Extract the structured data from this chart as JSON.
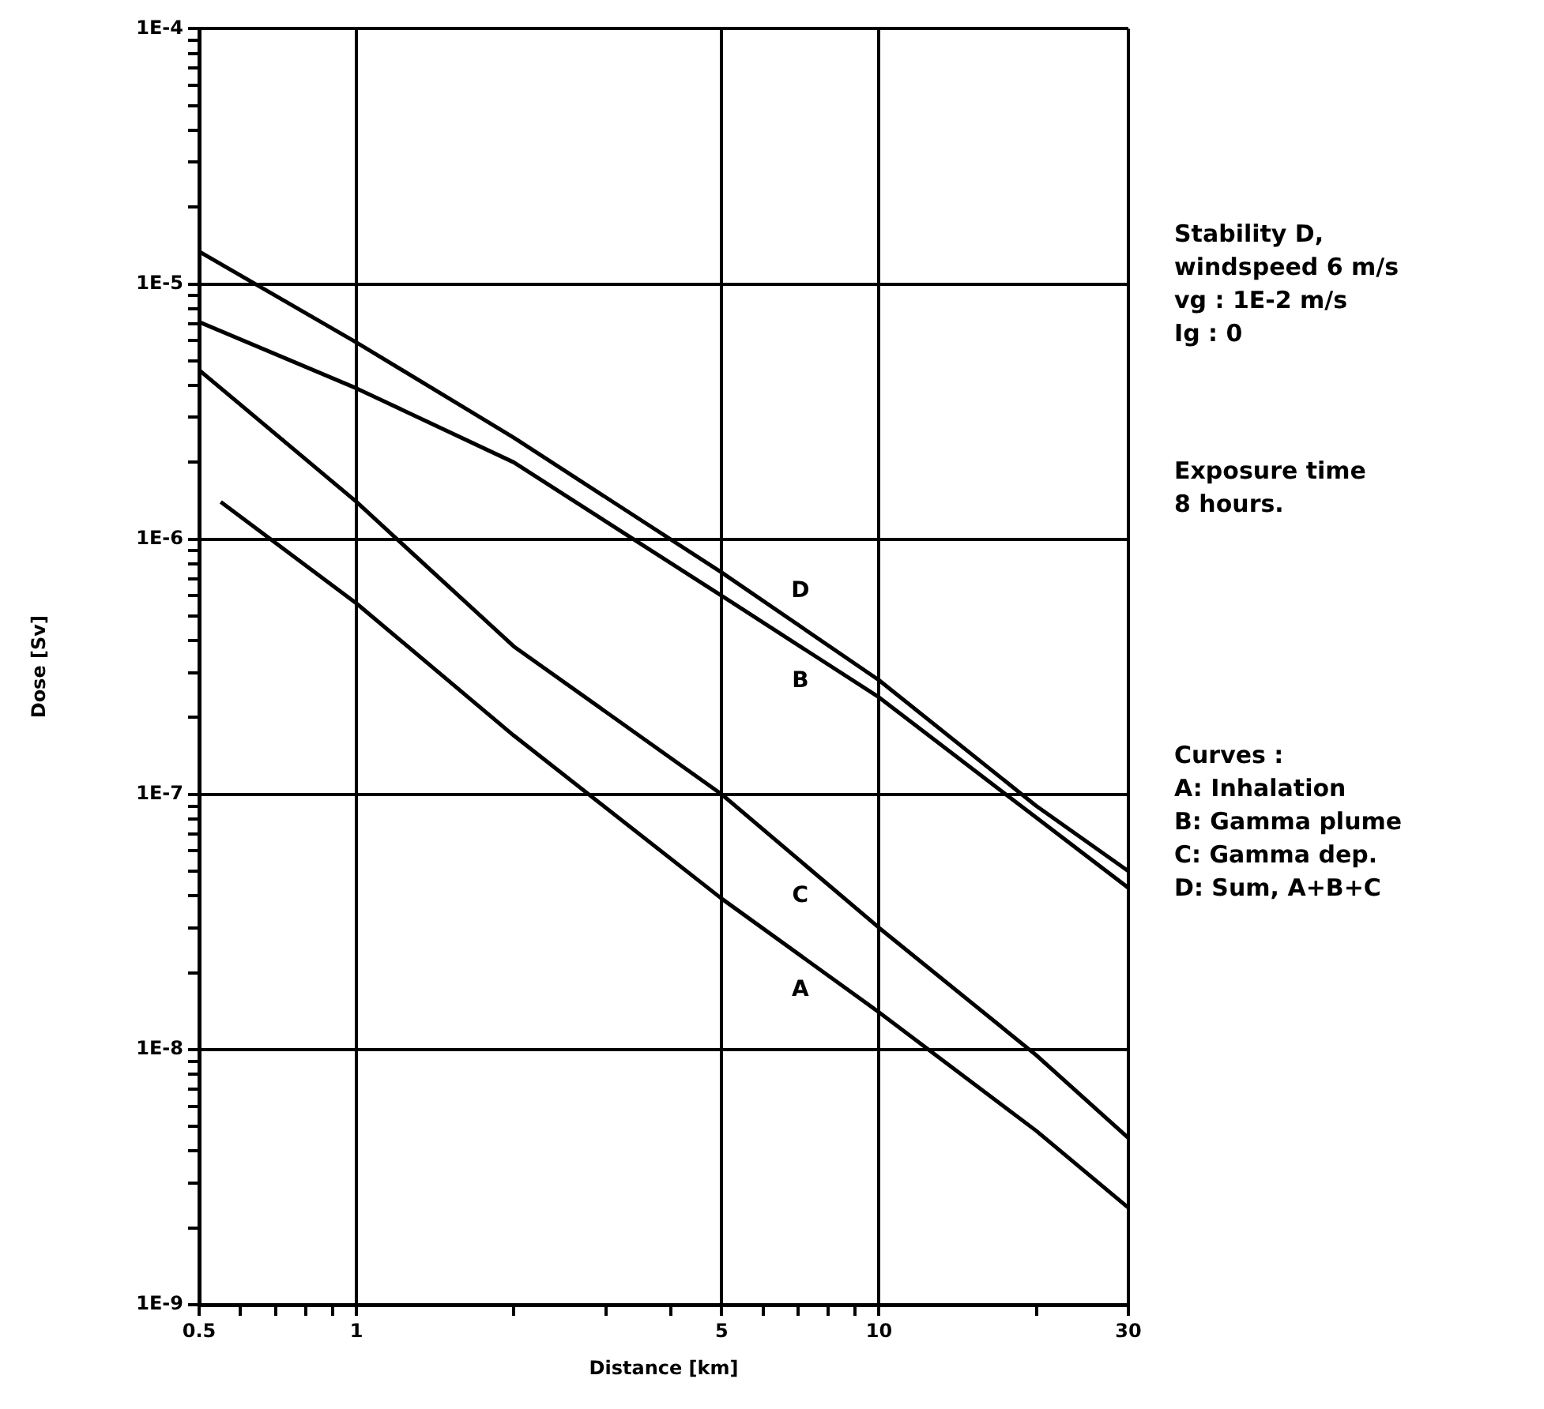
{
  "chart_data": {
    "type": "line",
    "xlabel": "Distance [km]",
    "ylabel": "Dose [Sv]",
    "log": "xy",
    "grid": true,
    "legend": false,
    "marker": "none",
    "line_style": "solid",
    "xlim": [
      0.5,
      30
    ],
    "xticks": [
      {
        "value": 0.5,
        "label": "0.5"
      },
      {
        "value": 0.6,
        "label": null
      },
      {
        "value": 0.7,
        "label": null
      },
      {
        "value": 0.8,
        "label": null
      },
      {
        "value": 0.9,
        "label": null
      },
      1,
      {
        "value": 2,
        "label": null
      },
      {
        "value": 3,
        "label": null
      },
      {
        "value": 4,
        "label": null
      },
      5,
      {
        "value": 6,
        "label": null
      },
      {
        "value": 7,
        "label": null
      },
      {
        "value": 8,
        "label": null
      },
      {
        "value": 9,
        "label": null
      },
      10,
      {
        "value": 20,
        "label": null
      },
      30
    ],
    "ylim": [
      1e-09,
      0.0001
    ],
    "yticks": [
      {
        "value": 1e-09,
        "label": "1E-9"
      },
      {
        "value": 2e-09,
        "label": null
      },
      {
        "value": 3e-09,
        "label": null
      },
      {
        "value": 4e-09,
        "label": null
      },
      {
        "value": 5e-09,
        "label": null
      },
      {
        "value": 6e-09,
        "label": null
      },
      {
        "value": 7e-09,
        "label": null
      },
      {
        "value": 8e-09,
        "label": null
      },
      {
        "value": 9e-09,
        "label": null
      },
      {
        "value": 1e-08,
        "label": "1E-8"
      },
      {
        "value": 2e-08,
        "label": null
      },
      {
        "value": 3e-08,
        "label": null
      },
      {
        "value": 4e-08,
        "label": null
      },
      {
        "value": 5e-08,
        "label": null
      },
      {
        "value": 6e-08,
        "label": null
      },
      {
        "value": 7e-08,
        "label": null
      },
      {
        "value": 8e-08,
        "label": null
      },
      {
        "value": 9e-08,
        "label": null
      },
      {
        "value": 1e-07,
        "label": "1E-7"
      },
      {
        "value": 2e-07,
        "label": null
      },
      {
        "value": 3e-07,
        "label": null
      },
      {
        "value": 4e-07,
        "label": null
      },
      {
        "value": 5e-07,
        "label": null
      },
      {
        "value": 6e-07,
        "label": null
      },
      {
        "value": 7e-07,
        "label": null
      },
      {
        "value": 8e-07,
        "label": null
      },
      {
        "value": 9e-07,
        "label": null
      },
      {
        "value": 1e-06,
        "label": "1E-6"
      },
      {
        "value": 2e-06,
        "label": null
      },
      {
        "value": 3e-06,
        "label": null
      },
      {
        "value": 4e-06,
        "label": null
      },
      {
        "value": 5e-06,
        "label": null
      },
      {
        "value": 6e-06,
        "label": null
      },
      {
        "value": 7e-06,
        "label": null
      },
      {
        "value": 8e-06,
        "label": null
      },
      {
        "value": 9e-06,
        "label": null
      },
      {
        "value": 1e-05,
        "label": "1E-5"
      },
      {
        "value": 2e-05,
        "label": null
      },
      {
        "value": 3e-05,
        "label": null
      },
      {
        "value": 4e-05,
        "label": null
      },
      {
        "value": 5e-05,
        "label": null
      },
      {
        "value": 6e-05,
        "label": null
      },
      {
        "value": 7e-05,
        "label": null
      },
      {
        "value": 8e-05,
        "label": null
      },
      {
        "value": 9e-05,
        "label": null
      },
      {
        "value": 0.0001,
        "label": "1E-4"
      }
    ],
    "series": [
      {
        "name": "A",
        "color": "#000000",
        "x": [
          0.55,
          1,
          2,
          5,
          10,
          20,
          30
        ],
        "values": [
          1.4e-06,
          5.6e-07,
          1.7e-07,
          3.9e-08,
          1.4e-08,
          4.8e-09,
          2.4e-09
        ]
      },
      {
        "name": "B",
        "color": "#000000",
        "x": [
          0.5,
          1,
          2,
          5,
          10,
          20,
          30
        ],
        "values": [
          7.1e-06,
          3.9e-06,
          2e-06,
          6e-07,
          2.4e-07,
          8.1e-08,
          4.3e-08
        ]
      },
      {
        "name": "C",
        "color": "#000000",
        "x": [
          0.5,
          1,
          2,
          5,
          10,
          20,
          30
        ],
        "values": [
          4.6e-06,
          1.4e-06,
          3.8e-07,
          1e-07,
          3e-08,
          9.5e-09,
          4.5e-09
        ]
      },
      {
        "name": "D",
        "color": "#000000",
        "x": [
          0.5,
          1,
          2,
          5,
          10,
          20,
          30
        ],
        "values": [
          1.34e-05,
          5.9e-06,
          2.5e-06,
          7.4e-07,
          2.8e-07,
          9e-08,
          5e-08
        ]
      }
    ],
    "annotations": [
      "Stability D,\nwindspeed 6 m/s\nvg : 1E-2 m/s\nIg : 0",
      "Exposure time\n8 hours.",
      "Curves :\nA: Inhalation\nB: Gamma plume\nC: Gamma dep.\nD: Sum, A+B+C"
    ]
  }
}
